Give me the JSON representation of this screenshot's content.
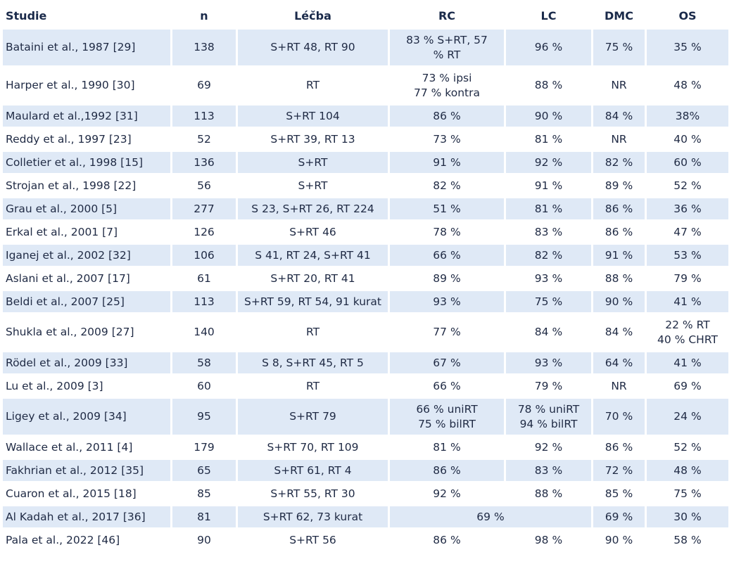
{
  "headers": {
    "study": "Studie",
    "n": "n",
    "treatment": "Léčba",
    "rc": "RC",
    "lc": "LC",
    "dmc": "DMC",
    "os": "OS"
  },
  "rows": [
    {
      "study": "Bataini et al., 1987 [29]",
      "n": "138",
      "treatment": "S+RT 48, RT 90",
      "rc": [
        "83 % S+RT, 57",
        "% RT"
      ],
      "lc": [
        "96 %"
      ],
      "dmc": "75 %",
      "os": [
        "35 %"
      ]
    },
    {
      "study": "Harper et al., 1990 [30]",
      "n": "69",
      "treatment": "RT",
      "rc": [
        "73 % ipsi",
        "77 % kontra"
      ],
      "lc": [
        "88 %"
      ],
      "dmc": "NR",
      "os": [
        "48 %"
      ]
    },
    {
      "study": "Maulard et al.,1992 [31]",
      "n": "113",
      "treatment": "S+RT 104",
      "rc": [
        "86 %"
      ],
      "lc": [
        "90 %"
      ],
      "dmc": "84 %",
      "os": [
        "38%"
      ]
    },
    {
      "study": "Reddy et al., 1997 [23]",
      "n": "52",
      "treatment": "S+RT 39, RT 13",
      "rc": [
        "73 %"
      ],
      "lc": [
        "81 %"
      ],
      "dmc": "NR",
      "os": [
        "40 %"
      ]
    },
    {
      "study": "Colletier et al., 1998 [15]",
      "n": "136",
      "treatment": "S+RT",
      "rc": [
        "91 %"
      ],
      "lc": [
        "92 %"
      ],
      "dmc": "82 %",
      "os": [
        "60 %"
      ]
    },
    {
      "study": "Strojan et al., 1998 [22]",
      "n": "56",
      "treatment": "S+RT",
      "rc": [
        "82 %"
      ],
      "lc": [
        "91 %"
      ],
      "dmc": "89 %",
      "os": [
        "52 %"
      ]
    },
    {
      "study": "Grau et al., 2000 [5]",
      "n": "277",
      "treatment": "S 23, S+RT 26, RT 224",
      "rc": [
        "51 %"
      ],
      "lc": [
        "81 %"
      ],
      "dmc": "86 %",
      "os": [
        "36 %"
      ]
    },
    {
      "study": "Erkal et al., 2001 [7]",
      "n": "126",
      "treatment": "S+RT 46",
      "rc": [
        "78 %"
      ],
      "lc": [
        "83 %"
      ],
      "dmc": "86 %",
      "os": [
        "47 %"
      ]
    },
    {
      "study": "Iganej et al., 2002 [32]",
      "n": "106",
      "treatment": "S 41, RT 24, S+RT 41",
      "rc": [
        "66 %"
      ],
      "lc": [
        "82 %"
      ],
      "dmc": "91 %",
      "os": [
        "53 %"
      ]
    },
    {
      "study": "Aslani et al., 2007 [17]",
      "n": "61",
      "treatment": "S+RT 20, RT 41",
      "rc": [
        "89 %"
      ],
      "lc": [
        "93 %"
      ],
      "dmc": "88 %",
      "os": [
        "79 %"
      ]
    },
    {
      "study": "Beldi et al., 2007 [25]",
      "n": "113",
      "treatment": "S+RT 59, RT 54, 91 kurat",
      "rc": [
        "93 %"
      ],
      "lc": [
        "75 %"
      ],
      "dmc": "90 %",
      "os": [
        "41 %"
      ]
    },
    {
      "study": "Shukla et al., 2009 [27]",
      "n": "140",
      "treatment": "RT",
      "rc": [
        "77 %"
      ],
      "lc": [
        "84 %"
      ],
      "dmc": "84 %",
      "os": [
        "22 % RT",
        "40 % CHRT"
      ]
    },
    {
      "study": "Rödel et al., 2009 [33]",
      "n": "58",
      "treatment": "S 8, S+RT 45, RT 5",
      "rc": [
        "67 %"
      ],
      "lc": [
        "93 %"
      ],
      "dmc": "64 %",
      "os": [
        "41 %"
      ]
    },
    {
      "study": "Lu et al., 2009 [3]",
      "n": "60",
      "treatment": "RT",
      "rc": [
        "66 %"
      ],
      "lc": [
        "79 %"
      ],
      "dmc": "NR",
      "os": [
        "69 %"
      ]
    },
    {
      "study": "Ligey et al., 2009 [34]",
      "n": "95",
      "treatment": "S+RT 79",
      "rc": [
        "66 % uniRT",
        "75 % bilRT"
      ],
      "lc": [
        "78 % uniRT",
        "94 % bilRT"
      ],
      "dmc": "70 %",
      "os": [
        "24 %"
      ]
    },
    {
      "study": "Wallace et al., 2011 [4]",
      "n": "179",
      "treatment": "S+RT 70, RT 109",
      "rc": [
        "81 %"
      ],
      "lc": [
        "92 %"
      ],
      "dmc": "86 %",
      "os": [
        "52 %"
      ]
    },
    {
      "study": "Fakhrian et al., 2012 [35]",
      "n": "65",
      "treatment": "S+RT 61, RT 4",
      "rc": [
        "86 %"
      ],
      "lc": [
        "83 %"
      ],
      "dmc": "72 %",
      "os": [
        "48 %"
      ]
    },
    {
      "study": "Cuaron et al., 2015 [18]",
      "n": "85",
      "treatment": "S+RT 55, RT 30",
      "rc": [
        "92 %"
      ],
      "lc": [
        "88 %"
      ],
      "dmc": "85 %",
      "os": [
        "75 %"
      ]
    },
    {
      "study": "Al Kadah et al., 2017 [36]",
      "n": "81",
      "treatment": "S+RT 62, 73 kurat",
      "rc_lc": "69 %",
      "dmc": "69 %",
      "os": [
        "30 %"
      ]
    },
    {
      "study": "Pala et al., 2022 [46]",
      "n": "90",
      "treatment": "S+RT 56",
      "rc": [
        "86 %"
      ],
      "lc": [
        "98 %"
      ],
      "dmc": "90 %",
      "os": [
        "58 %"
      ]
    }
  ]
}
